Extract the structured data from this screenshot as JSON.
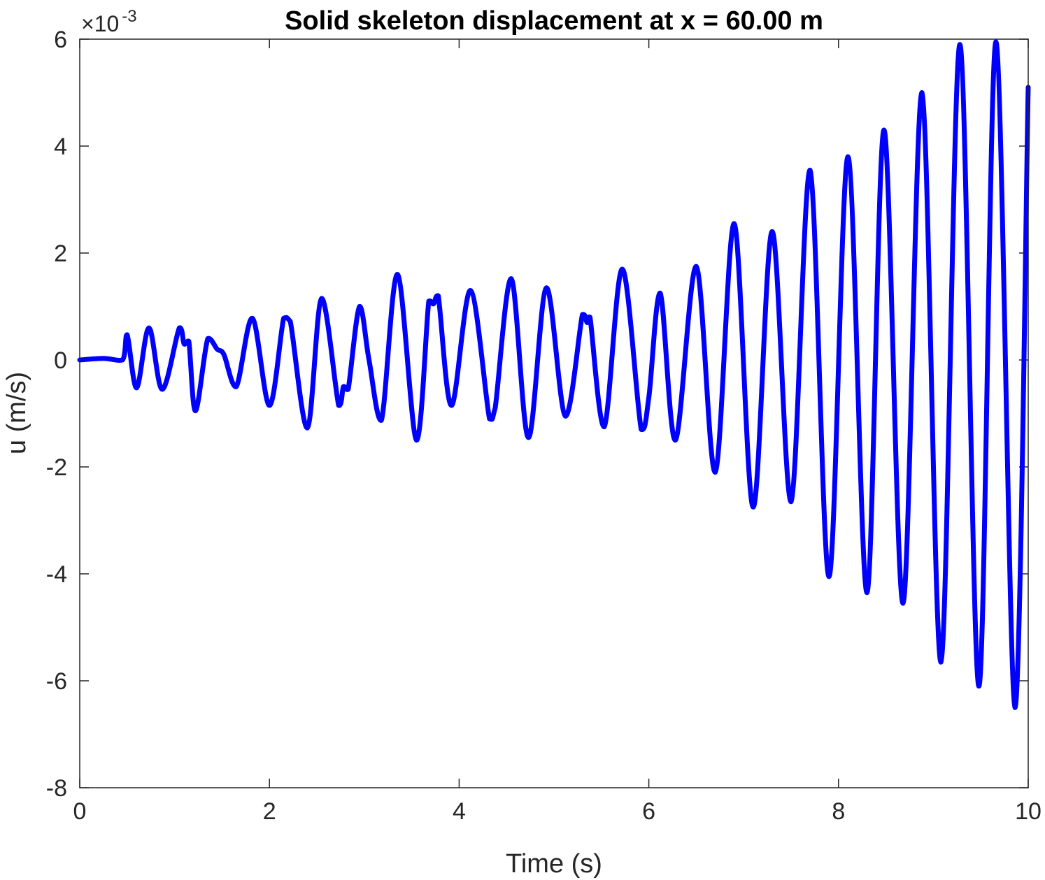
{
  "chart_data": {
    "type": "line",
    "title": "Solid skeleton displacement at x = 60.00 m",
    "xlabel": "Time (s)",
    "ylabel": "u (m/s)",
    "y_multiplier": "×10",
    "y_multiplier_exponent": "-3",
    "xlim": [
      0,
      10
    ],
    "ylim": [
      -8,
      6
    ],
    "x_ticks": [
      0,
      2,
      4,
      6,
      8,
      10
    ],
    "x_tick_labels": [
      "0",
      "2",
      "4",
      "6",
      "8",
      "10"
    ],
    "y_ticks": [
      -8,
      -6,
      -4,
      -2,
      0,
      2,
      4,
      6
    ],
    "y_tick_labels": [
      "-8",
      "-6",
      "-4",
      "-2",
      "0",
      "2",
      "4",
      "6"
    ],
    "grid": false,
    "line_color": "#0000ff",
    "series": [
      {
        "x": [
          0,
          0.25,
          0.45,
          0.5,
          0.6,
          0.73,
          0.87,
          1.05,
          1.1,
          1.15,
          1.22,
          1.35,
          1.45,
          1.52,
          1.65,
          1.82,
          2.0,
          2.15,
          2.22,
          2.4,
          2.55,
          2.73,
          2.78,
          2.83,
          2.95,
          3.05,
          3.18,
          3.35,
          3.55,
          3.68,
          3.73,
          3.78,
          3.92,
          4.12,
          4.32,
          4.38,
          4.55,
          4.73,
          4.92,
          5.12,
          5.3,
          5.35,
          5.38,
          5.53,
          5.72,
          5.92,
          6.0,
          6.12,
          6.28,
          6.5,
          6.7,
          6.9,
          7.1,
          7.3,
          7.5,
          7.7,
          7.9,
          8.1,
          8.3,
          8.48,
          8.68,
          8.88,
          9.08,
          9.28,
          9.48,
          9.66,
          9.86,
          10.0
        ],
        "values": [
          0,
          0.03,
          0.0,
          0.47,
          -0.52,
          0.6,
          -0.55,
          0.6,
          0.3,
          0.35,
          -0.95,
          0.4,
          0.2,
          0.1,
          -0.5,
          0.78,
          -0.85,
          0.78,
          0.72,
          -1.27,
          1.15,
          -0.85,
          -0.5,
          -0.55,
          1.0,
          0.0,
          -1.13,
          1.6,
          -1.5,
          1.1,
          1.05,
          1.2,
          -0.85,
          1.3,
          -1.1,
          -0.9,
          1.52,
          -1.45,
          1.35,
          -1.05,
          0.85,
          0.7,
          0.8,
          -1.25,
          1.7,
          -1.3,
          -0.7,
          1.25,
          -1.5,
          1.75,
          -2.1,
          2.55,
          -2.75,
          2.4,
          -2.65,
          3.55,
          -4.05,
          3.8,
          -4.35,
          4.3,
          -4.55,
          5.0,
          -5.65,
          5.9,
          -6.1,
          5.95,
          -6.5,
          5.1
        ]
      }
    ]
  }
}
